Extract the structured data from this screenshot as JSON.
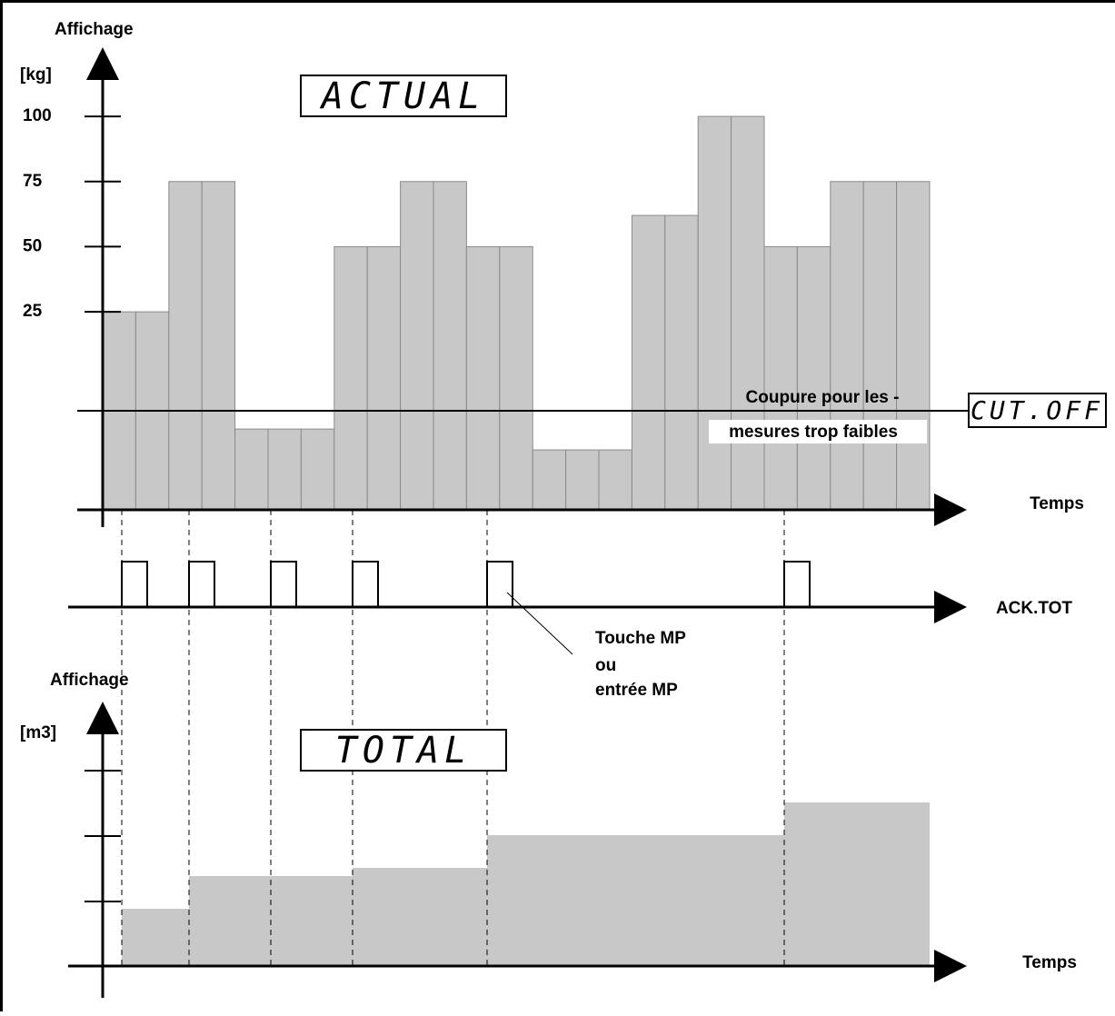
{
  "top_chart": {
    "y_label": "Affichage",
    "unit": "[kg]",
    "display": "ACTUAL",
    "x_label": "Temps",
    "yticks": [
      25,
      50,
      75,
      100
    ],
    "ylim": [
      -51,
      122
    ],
    "values": [
      25,
      25,
      75,
      75,
      -20,
      -20,
      -20,
      50,
      50,
      75,
      75,
      50,
      50,
      -28,
      -28,
      -28,
      62,
      62,
      100,
      100,
      50,
      50,
      75,
      75,
      75
    ],
    "cutoff": -13,
    "cutoff_label": [
      "Coupure pour les   -",
      "mesures trop faibles"
    ],
    "cutoff_display": "CUT.OFF"
  },
  "ack": {
    "label": "ACK.TOT",
    "note": [
      "Touche MP",
      "ou",
      "entrée MP"
    ]
  },
  "bottom_chart": {
    "y_label": "Affichage",
    "unit": "[m3]",
    "display": "TOTAL",
    "x_label": "Temps",
    "values": [
      0.875,
      1.375,
      1.375,
      1.5,
      2,
      2.5
    ]
  }
}
